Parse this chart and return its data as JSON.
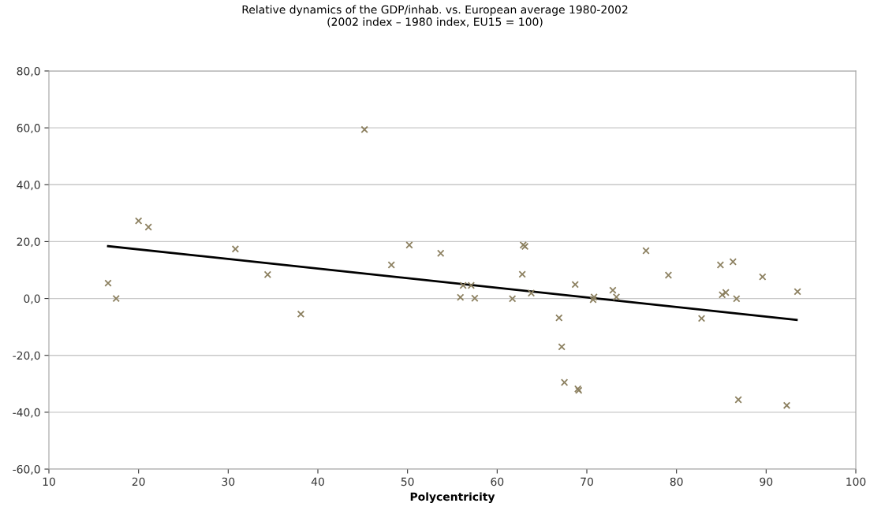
{
  "chart_data": {
    "type": "scatter",
    "title": "Relative dynamics of the GDP/inhab. vs. European average 1980-2002\n(2002 index – 1980 index, EU15 = 100)",
    "xlabel": "Polycentricity",
    "series": [
      {
        "color": "#8c8060",
        "marker": "cross",
        "x": [
          16.6,
          17.5,
          20.0,
          21.1,
          30.8,
          34.4,
          38.1,
          45.2,
          48.2,
          50.2,
          53.7,
          55.9,
          56.2,
          57.1,
          57.5,
          61.7,
          62.9,
          63.1,
          62.8,
          63.8,
          66.9,
          67.2,
          67.5,
          69.1,
          69.0,
          68.7,
          70.7,
          70.8,
          72.9,
          73.3,
          76.6,
          79.1,
          82.8,
          84.9,
          86.3,
          85.1,
          85.5,
          86.7,
          86.9,
          89.6,
          92.3,
          93.5
        ],
        "values": [
          5.4,
          0,
          27.3,
          25.1,
          17.4,
          8.4,
          -5.5,
          59.4,
          11.8,
          18.8,
          15.9,
          0.4,
          4.6,
          4.6,
          0.1,
          -0.1,
          18.8,
          18.3,
          8.5,
          1.9,
          -6.8,
          -17.0,
          -29.5,
          -32.3,
          -31.8,
          4.9,
          -0.4,
          0.5,
          2.9,
          0.5,
          16.8,
          8.2,
          -7.0,
          11.8,
          12.9,
          1.3,
          2.1,
          -0.1,
          -35.6,
          7.6,
          -37.6,
          2.4
        ]
      },
      {
        "type": "line",
        "color": "#000000",
        "marker": "none",
        "x": [
          16.6,
          93.4
        ],
        "values": [
          18.4,
          -7.5
        ]
      }
    ],
    "xlim": [
      10,
      100
    ],
    "xticks": [
      10,
      20,
      30,
      40,
      50,
      60,
      70,
      80,
      90,
      100
    ],
    "ylim": [
      -60,
      80
    ],
    "yticks": [
      {
        "value": -60,
        "label": "-60,0"
      },
      {
        "value": -40,
        "label": "-40,0"
      },
      {
        "value": -20,
        "label": "-20,0"
      },
      {
        "value": 0,
        "label": "0,0"
      },
      {
        "value": 20,
        "label": "20,0"
      },
      {
        "value": 40,
        "label": "40,0"
      },
      {
        "value": 60,
        "label": "60,0"
      },
      {
        "value": 80,
        "label": "80,0"
      }
    ],
    "grid": "y",
    "legend": false
  }
}
